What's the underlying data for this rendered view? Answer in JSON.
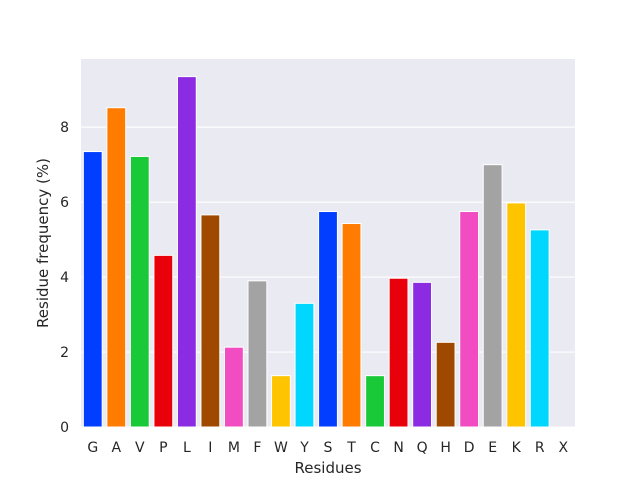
{
  "chart_data": {
    "type": "bar",
    "title": "",
    "xlabel": "Residues",
    "ylabel": "Residue frequency (%)",
    "categories": [
      "G",
      "A",
      "V",
      "P",
      "L",
      "I",
      "M",
      "F",
      "W",
      "Y",
      "S",
      "T",
      "C",
      "N",
      "Q",
      "H",
      "D",
      "E",
      "K",
      "R",
      "X"
    ],
    "values": [
      7.35,
      8.52,
      7.22,
      4.58,
      9.35,
      5.66,
      2.13,
      3.9,
      1.37,
      3.3,
      5.75,
      5.43,
      1.37,
      3.97,
      3.86,
      2.26,
      5.75,
      7.0,
      5.98,
      5.26,
      0.0
    ],
    "colors": [
      "#023eff",
      "#ff7c00",
      "#1ac938",
      "#e8000b",
      "#8b2be2",
      "#9f4800",
      "#f14cc1",
      "#a3a3a3",
      "#ffc400",
      "#00d7ff",
      "#023eff",
      "#ff7c00",
      "#1ac938",
      "#e8000b",
      "#8b2be2",
      "#9f4800",
      "#f14cc1",
      "#a3a3a3",
      "#ffc400",
      "#00d7ff",
      "#023eff"
    ],
    "yticks": [
      0,
      2,
      4,
      6,
      8
    ],
    "ylim": [
      0,
      9.82
    ],
    "grid": true,
    "background": "#eaeaf2",
    "gridColor": "#ffffff"
  }
}
